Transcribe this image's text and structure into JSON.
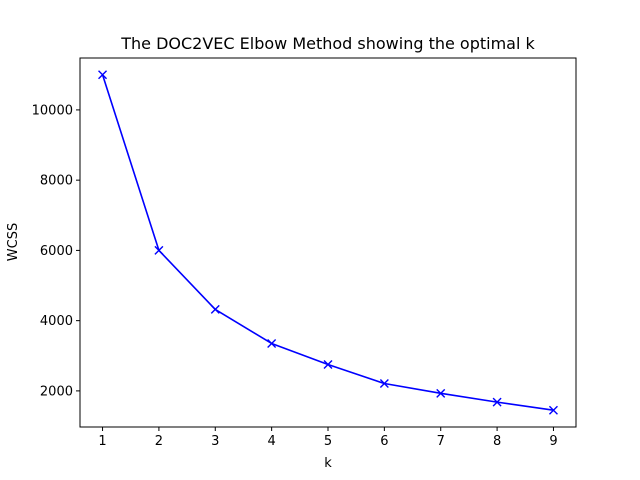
{
  "chart_data": {
    "type": "line",
    "title": "The DOC2VEC Elbow Method showing the optimal k",
    "xlabel": "k",
    "ylabel": "WCSS",
    "x": [
      1,
      2,
      3,
      4,
      5,
      6,
      7,
      8,
      9
    ],
    "series": [
      {
        "values": [
          11000,
          6000,
          4320,
          3350,
          2750,
          2210,
          1930,
          1680,
          1450
        ],
        "color": "#0000ff",
        "marker": "x"
      }
    ],
    "xticks": [
      1,
      2,
      3,
      4,
      5,
      6,
      7,
      8,
      9
    ],
    "yticks": [
      2000,
      4000,
      6000,
      8000,
      10000
    ],
    "xlim": [
      0.6,
      9.4
    ],
    "ylim": [
      972,
      11478
    ],
    "grid": false,
    "legend": "none"
  }
}
